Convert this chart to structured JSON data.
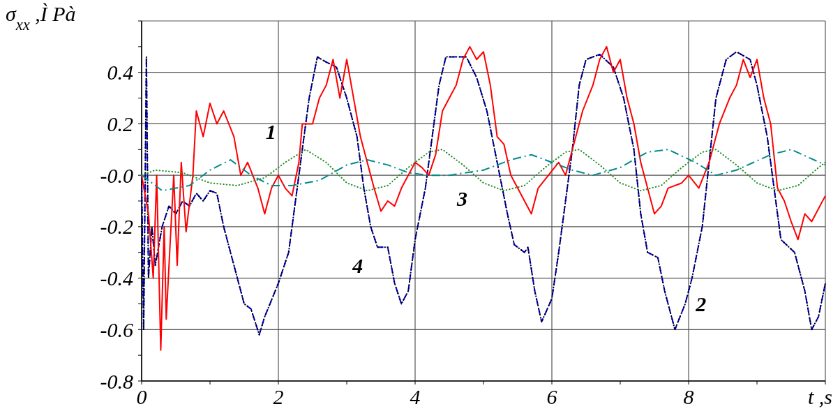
{
  "chart_data": {
    "type": "line",
    "ylabel": "σ$_{xx}$ ,Ì Pà",
    "xlabel": "t ,s",
    "xlim": [
      0,
      10
    ],
    "ylim": [
      -0.8,
      0.6
    ],
    "xticks": [
      0,
      2,
      4,
      6,
      8,
      {
        "value": 10,
        "label": null
      }
    ],
    "yticks": [
      -0.8,
      -0.6,
      -0.4,
      -0.2,
      {
        "value": 0,
        "label": "-0.0"
      },
      0.2,
      0.4,
      {
        "value": 0.6,
        "label": null
      }
    ],
    "grid": true,
    "series": [
      {
        "name": "2",
        "color": "#0000ff",
        "line_style": "dashed",
        "x": [
          0,
          0.03,
          0.07,
          0.1,
          0.15,
          0.2,
          0.3,
          0.4,
          0.5,
          0.6,
          0.7,
          0.8,
          0.9,
          1.0,
          1.1,
          1.2,
          1.35,
          1.5,
          1.6,
          1.72,
          1.8,
          2.0,
          2.15,
          2.25,
          2.35,
          2.45,
          2.57,
          2.7,
          2.85,
          3.0,
          3.15,
          3.25,
          3.35,
          3.45,
          3.6,
          3.7,
          3.8,
          3.9,
          4.0,
          4.15,
          4.25,
          4.35,
          4.45,
          4.6,
          4.75,
          4.9,
          5.05,
          5.2,
          5.35,
          5.45,
          5.6,
          5.65,
          5.75,
          5.85,
          6.0,
          6.1,
          6.2,
          6.3,
          6.4,
          6.5,
          6.7,
          6.9,
          7.05,
          7.2,
          7.3,
          7.4,
          7.55,
          7.65,
          7.8,
          7.95,
          8.05,
          8.2,
          8.3,
          8.4,
          8.55,
          8.7,
          8.9,
          9.0,
          9.15,
          9.25,
          9.35,
          9.55,
          9.7,
          9.8,
          9.9,
          10.0
        ],
        "values": [
          0,
          -0.6,
          0.46,
          -0.4,
          -0.2,
          -0.35,
          -0.2,
          -0.12,
          -0.15,
          -0.1,
          -0.12,
          -0.07,
          -0.1,
          -0.06,
          -0.07,
          -0.2,
          -0.35,
          -0.5,
          -0.52,
          -0.62,
          -0.55,
          -0.42,
          -0.3,
          -0.1,
          0.1,
          0.3,
          0.46,
          0.44,
          0.42,
          0.3,
          0.15,
          -0.05,
          -0.2,
          -0.28,
          -0.28,
          -0.42,
          -0.5,
          -0.45,
          -0.25,
          -0.05,
          0.15,
          0.35,
          0.46,
          0.46,
          0.46,
          0.38,
          0.25,
          0.05,
          -0.15,
          -0.27,
          -0.3,
          -0.28,
          -0.45,
          -0.57,
          -0.48,
          -0.3,
          -0.1,
          0.1,
          0.35,
          0.45,
          0.47,
          0.42,
          0.3,
          0.1,
          -0.15,
          -0.3,
          -0.32,
          -0.45,
          -0.6,
          -0.5,
          -0.4,
          -0.2,
          0.05,
          0.3,
          0.45,
          0.48,
          0.45,
          0.35,
          0.15,
          -0.05,
          -0.25,
          -0.3,
          -0.45,
          -0.6,
          -0.55,
          -0.42
        ]
      },
      {
        "name": "4",
        "color": "#000000",
        "line_style": "dotted",
        "x": [
          0,
          0.03,
          0.07,
          0.1,
          0.15,
          0.2,
          0.3,
          0.4,
          0.5,
          0.6,
          0.7,
          0.8,
          0.9,
          1.0,
          1.1,
          1.2,
          1.35,
          1.5,
          1.6,
          1.72,
          1.8,
          2.0,
          2.15,
          2.25,
          2.35,
          2.45,
          2.57,
          2.7,
          2.85,
          3.0,
          3.15,
          3.25,
          3.35,
          3.45,
          3.6,
          3.7,
          3.8,
          3.9,
          4.0,
          4.15,
          4.25,
          4.35,
          4.45,
          4.6,
          4.75,
          4.9,
          5.05,
          5.2,
          5.35,
          5.45,
          5.6,
          5.65,
          5.75,
          5.85,
          6.0,
          6.1,
          6.2,
          6.3,
          6.4,
          6.5,
          6.7,
          6.9,
          7.05,
          7.2,
          7.3,
          7.4,
          7.55,
          7.65,
          7.8,
          7.95,
          8.05,
          8.2,
          8.3,
          8.4,
          8.55,
          8.7,
          8.9,
          9.0,
          9.15,
          9.25,
          9.35,
          9.55,
          9.7,
          9.8,
          9.9,
          10.0
        ],
        "values": [
          0,
          -0.6,
          0.46,
          -0.4,
          -0.2,
          -0.35,
          -0.2,
          -0.12,
          -0.15,
          -0.1,
          -0.12,
          -0.07,
          -0.1,
          -0.06,
          -0.07,
          -0.2,
          -0.35,
          -0.5,
          -0.52,
          -0.62,
          -0.55,
          -0.42,
          -0.3,
          -0.1,
          0.1,
          0.3,
          0.46,
          0.44,
          0.42,
          0.3,
          0.15,
          -0.05,
          -0.2,
          -0.28,
          -0.28,
          -0.42,
          -0.5,
          -0.45,
          -0.25,
          -0.05,
          0.15,
          0.35,
          0.46,
          0.46,
          0.46,
          0.38,
          0.25,
          0.05,
          -0.15,
          -0.27,
          -0.3,
          -0.28,
          -0.45,
          -0.57,
          -0.48,
          -0.3,
          -0.1,
          0.1,
          0.35,
          0.45,
          0.47,
          0.42,
          0.3,
          0.1,
          -0.15,
          -0.3,
          -0.32,
          -0.45,
          -0.6,
          -0.5,
          -0.4,
          -0.2,
          0.05,
          0.3,
          0.45,
          0.48,
          0.45,
          0.35,
          0.15,
          -0.05,
          -0.25,
          -0.3,
          -0.45,
          -0.6,
          -0.55,
          -0.42
        ]
      },
      {
        "name": "1",
        "color": "#ff0000",
        "line_style": "solid",
        "x": [
          0,
          0.1,
          0.17,
          0.22,
          0.28,
          0.33,
          0.36,
          0.42,
          0.47,
          0.52,
          0.58,
          0.65,
          0.75,
          0.8,
          0.9,
          1.0,
          1.1,
          1.2,
          1.35,
          1.45,
          1.55,
          1.7,
          1.8,
          1.9,
          2.0,
          2.1,
          2.2,
          2.3,
          2.35,
          2.5,
          2.6,
          2.7,
          2.8,
          2.9,
          3.0,
          3.1,
          3.2,
          3.3,
          3.4,
          3.5,
          3.6,
          3.7,
          3.8,
          3.9,
          4.0,
          4.1,
          4.2,
          4.3,
          4.4,
          4.5,
          4.6,
          4.7,
          4.8,
          4.9,
          5.0,
          5.1,
          5.2,
          5.3,
          5.4,
          5.5,
          5.6,
          5.7,
          5.8,
          5.95,
          6.1,
          6.2,
          6.3,
          6.45,
          6.6,
          6.7,
          6.8,
          6.9,
          7.0,
          7.1,
          7.2,
          7.3,
          7.4,
          7.5,
          7.6,
          7.7,
          7.9,
          8.0,
          8.15,
          8.3,
          8.45,
          8.6,
          8.7,
          8.8,
          8.9,
          9.0,
          9.1,
          9.2,
          9.3,
          9.4,
          9.5,
          9.6,
          9.7,
          9.8,
          9.9,
          10.0
        ],
        "values": [
          0,
          -0.15,
          -0.4,
          0.0,
          -0.68,
          -0.2,
          -0.56,
          -0.25,
          0.0,
          -0.35,
          0.05,
          -0.22,
          0.0,
          0.25,
          0.15,
          0.28,
          0.2,
          0.25,
          0.15,
          0.0,
          0.05,
          -0.05,
          -0.15,
          -0.05,
          0.0,
          -0.05,
          -0.08,
          0.05,
          0.2,
          0.2,
          0.3,
          0.35,
          0.45,
          0.3,
          0.45,
          0.3,
          0.15,
          0.05,
          -0.05,
          -0.14,
          -0.1,
          -0.12,
          -0.05,
          0.0,
          0.05,
          0.03,
          0.0,
          0.08,
          0.25,
          0.3,
          0.35,
          0.45,
          0.5,
          0.45,
          0.48,
          0.35,
          0.15,
          0.12,
          0.0,
          -0.05,
          -0.1,
          -0.15,
          -0.05,
          0.0,
          0.05,
          0.0,
          0.1,
          0.25,
          0.35,
          0.45,
          0.5,
          0.4,
          0.45,
          0.3,
          0.2,
          0.05,
          -0.05,
          -0.15,
          -0.12,
          -0.05,
          -0.03,
          0.0,
          -0.05,
          0.05,
          0.2,
          0.3,
          0.35,
          0.45,
          0.38,
          0.45,
          0.3,
          0.2,
          -0.05,
          -0.1,
          -0.18,
          -0.25,
          -0.15,
          -0.18,
          -0.13,
          -0.08
        ]
      },
      {
        "name": "3",
        "color": "#228b22",
        "line_style": "dotted",
        "x": [
          0,
          0.2,
          0.6,
          1.0,
          1.4,
          1.8,
          2.1,
          2.4,
          2.7,
          3.0,
          3.3,
          3.6,
          3.9,
          4.2,
          4.4,
          4.7,
          5.0,
          5.3,
          5.6,
          5.9,
          6.2,
          6.4,
          6.7,
          7.0,
          7.3,
          7.6,
          7.9,
          8.2,
          8.4,
          8.7,
          9.0,
          9.3,
          9.6,
          9.9,
          10
        ],
        "values": [
          0,
          0.02,
          0.01,
          -0.03,
          -0.04,
          -0.01,
          0.05,
          0.1,
          0.05,
          -0.03,
          -0.06,
          -0.04,
          0.03,
          0.09,
          0.1,
          0.04,
          -0.03,
          -0.06,
          -0.04,
          0.03,
          0.09,
          0.1,
          0.04,
          -0.03,
          -0.06,
          -0.04,
          0.03,
          0.09,
          0.1,
          0.04,
          -0.03,
          -0.06,
          -0.04,
          0.03,
          0.05
        ]
      },
      {
        "color": "#008b8b",
        "line_style": "dashdot",
        "x": [
          0,
          0.3,
          0.7,
          1.0,
          1.3,
          1.6,
          1.9,
          2.2,
          2.6,
          3.0,
          3.3,
          3.6,
          3.9,
          4.2,
          4.5,
          5.0,
          5.4,
          5.7,
          6.0,
          6.3,
          6.6,
          7.0,
          7.4,
          7.7,
          8.1,
          8.4,
          8.7,
          9.2,
          9.5,
          10.0
        ],
        "values": [
          0,
          -0.06,
          -0.04,
          0.02,
          0.06,
          0.0,
          -0.04,
          -0.04,
          -0.02,
          0.04,
          0.06,
          0.04,
          0.01,
          0.0,
          0.0,
          0.02,
          0.06,
          0.08,
          0.05,
          0.02,
          0.0,
          0.03,
          0.09,
          0.1,
          0.05,
          0.0,
          0.02,
          0.08,
          0.1,
          0.04
        ]
      }
    ]
  }
}
